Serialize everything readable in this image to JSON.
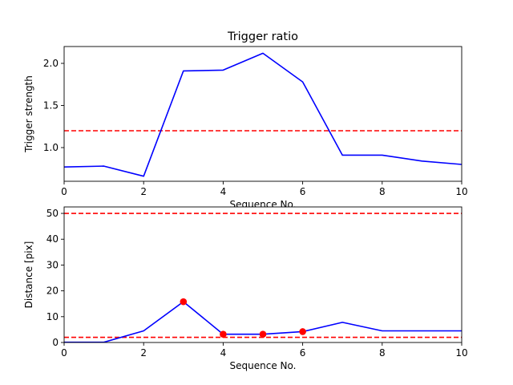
{
  "chart_data": [
    {
      "type": "line",
      "title": "Trigger ratio",
      "xlabel": "Sequence No.",
      "ylabel": "Trigger strength",
      "xlim": [
        0,
        10
      ],
      "ylim": [
        0.6,
        2.2
      ],
      "xticks": [
        0,
        2,
        4,
        6,
        8,
        10
      ],
      "yticks": [
        1.0,
        1.5,
        2.0
      ],
      "ytick_labels": [
        "1.0",
        "1.5",
        "2.0"
      ],
      "grid": false,
      "series": [
        {
          "color": "#0000ff",
          "style": "solid",
          "x": [
            0,
            1,
            2,
            3,
            4,
            5,
            6,
            7,
            8,
            9,
            10
          ],
          "y": [
            0.77,
            0.78,
            0.66,
            1.91,
            1.92,
            2.12,
            1.78,
            0.91,
            0.91,
            0.84,
            0.8
          ]
        }
      ],
      "reference_lines": [
        {
          "y": 1.2,
          "color": "#ff0000",
          "style": "dashed"
        }
      ]
    },
    {
      "type": "line",
      "title": "",
      "xlabel": "Sequence No.",
      "ylabel": "Distance [pix]",
      "xlim": [
        0,
        10
      ],
      "ylim": [
        0,
        52.5
      ],
      "xticks": [
        0,
        2,
        4,
        6,
        8,
        10
      ],
      "yticks": [
        0,
        10,
        20,
        30,
        40,
        50
      ],
      "ytick_labels": [
        "0",
        "10",
        "20",
        "30",
        "40",
        "50"
      ],
      "grid": false,
      "series": [
        {
          "color": "#0000ff",
          "style": "solid",
          "x": [
            0,
            1,
            2,
            3,
            4,
            5,
            6,
            7,
            8,
            9,
            10
          ],
          "y": [
            0.1,
            0.1,
            4.5,
            15.8,
            3.2,
            3.2,
            4.2,
            7.8,
            4.5,
            4.5,
            4.5
          ]
        },
        {
          "color": "#ff0000",
          "style": "markers",
          "x": [
            3,
            4,
            5,
            6
          ],
          "y": [
            15.8,
            3.2,
            3.2,
            4.2
          ]
        }
      ],
      "reference_lines": [
        {
          "y": 50,
          "color": "#ff0000",
          "style": "dashed"
        },
        {
          "y": 2,
          "color": "#ff0000",
          "style": "dashed"
        }
      ]
    }
  ]
}
